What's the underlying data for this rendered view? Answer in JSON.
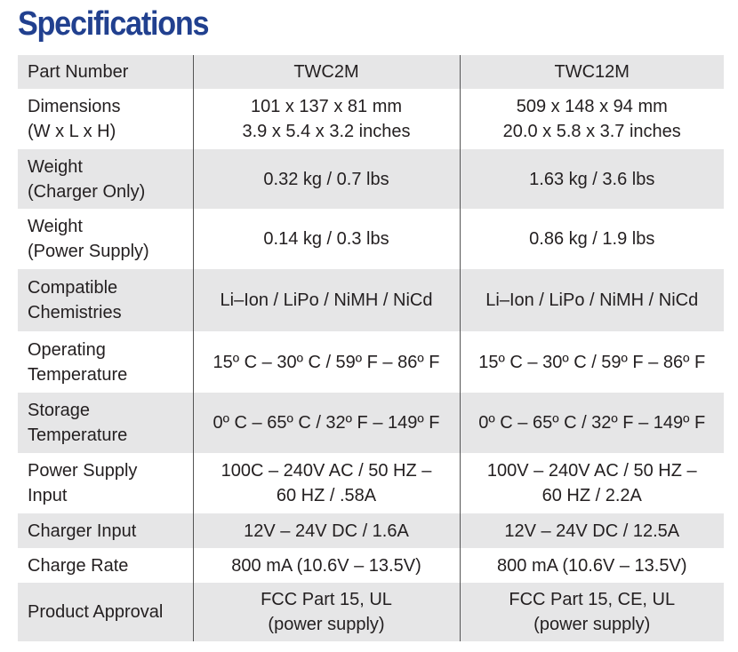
{
  "title": "Specifications",
  "table": {
    "header": [
      "Part Number",
      "TWC2M",
      "TWC12M"
    ],
    "rows": [
      [
        [
          "Dimensions",
          "(W x L x H)"
        ],
        [
          "101 x 137 x 81 mm",
          "3.9 x 5.4 x 3.2 inches"
        ],
        [
          "509 x 148 x 94 mm",
          "20.0 x 5.8 x 3.7 inches"
        ]
      ],
      [
        [
          "Weight",
          "(Charger Only)"
        ],
        [
          "0.32 kg / 0.7 lbs"
        ],
        [
          "1.63 kg / 3.6 lbs"
        ]
      ],
      [
        [
          "Weight",
          "(Power Supply)"
        ],
        [
          "0.14 kg / 0.3 lbs"
        ],
        [
          "0.86 kg / 1.9 lbs"
        ]
      ],
      [
        [
          "Compatible",
          "Chemistries"
        ],
        [
          "Li–Ion / LiPo / NiMH / NiCd"
        ],
        [
          "Li–Ion / LiPo / NiMH / NiCd"
        ]
      ],
      [
        [
          "Operating",
          "Temperature"
        ],
        [
          "15º C – 30º C / 59º F – 86º F"
        ],
        [
          "15º C – 30º C / 59º F – 86º F"
        ]
      ],
      [
        [
          "Storage",
          "Temperature"
        ],
        [
          "0º C – 65º C / 32º F – 149º F"
        ],
        [
          "0º C – 65º C / 32º F – 149º F"
        ]
      ],
      [
        [
          "Power Supply",
          "Input"
        ],
        [
          "100C – 240V AC / 50 HZ –",
          "60 HZ / .58A"
        ],
        [
          "100V – 240V AC / 50 HZ –",
          "60 HZ / 2.2A"
        ]
      ],
      [
        [
          "Charger Input"
        ],
        [
          "12V – 24V DC / 1.6A"
        ],
        [
          "12V – 24V DC / 12.5A"
        ]
      ],
      [
        [
          "Charge Rate"
        ],
        [
          "800 mA (10.6V – 13.5V)"
        ],
        [
          "800 mA (10.6V – 13.5V)"
        ]
      ],
      [
        [
          "Product Approval"
        ],
        [
          "FCC Part 15, UL",
          "(power supply)"
        ],
        [
          "FCC Part 15, CE, UL",
          "(power supply)"
        ]
      ]
    ]
  }
}
